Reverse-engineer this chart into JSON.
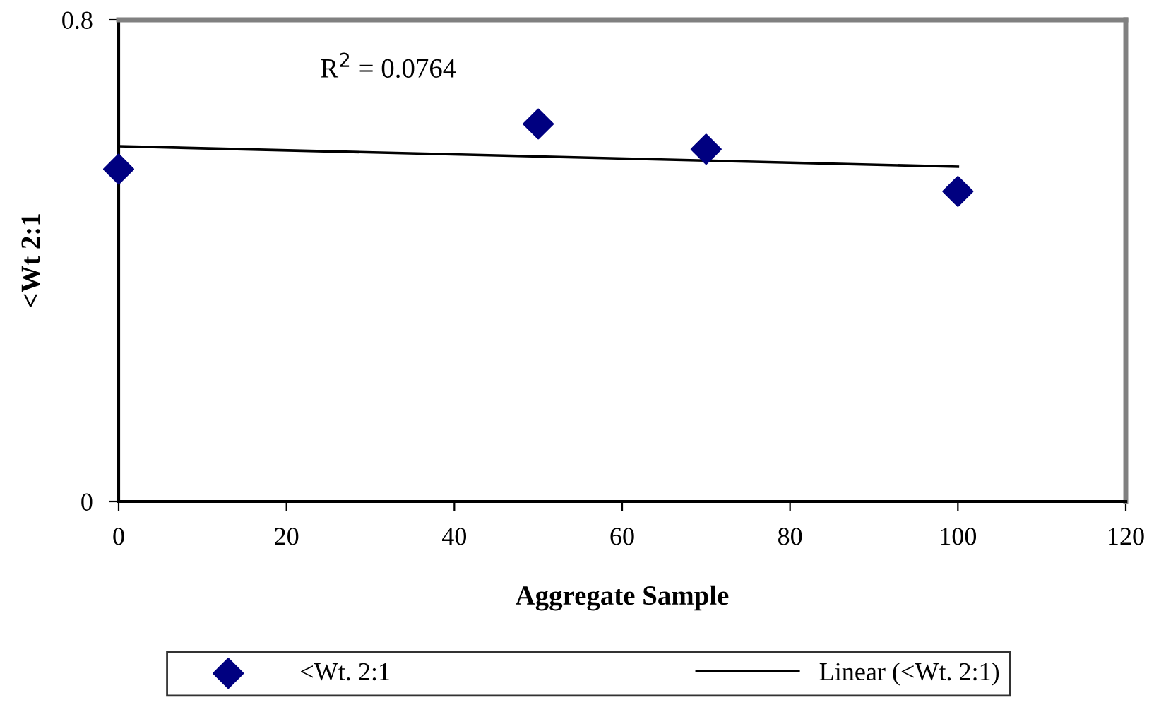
{
  "chart_data": {
    "type": "scatter",
    "xlabel": "Aggregate Sample",
    "ylabel": "<Wt 2:1",
    "series": [
      {
        "name": "<Wt. 2:1",
        "color": "#000080",
        "marker": "diamond",
        "x": [
          0,
          50,
          70,
          100
        ],
        "values": [
          0.552,
          0.627,
          0.585,
          0.515
        ]
      },
      {
        "name": "Linear (<Wt. 2:1)",
        "type": "line",
        "color": "#000000",
        "marker": "none",
        "line_style": "solid",
        "x": [
          0,
          100
        ],
        "values": [
          0.59,
          0.556
        ]
      }
    ],
    "annotations": [
      "R$^{2}$ = 0.0764"
    ],
    "xlim": [
      0,
      120
    ],
    "xticks": [
      0,
      20,
      40,
      60,
      80,
      100,
      120
    ],
    "ylim": [
      0,
      0.8
    ],
    "yticks": [
      0,
      0.8
    ],
    "grid": false,
    "legend": "bottom"
  }
}
